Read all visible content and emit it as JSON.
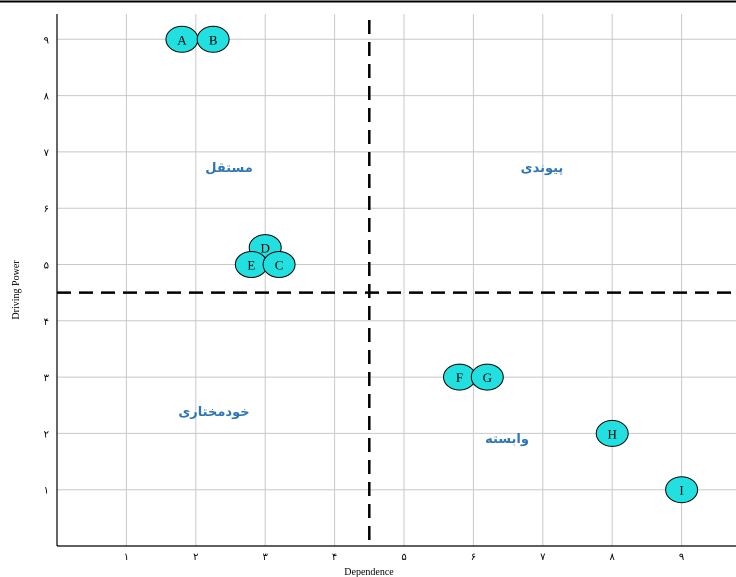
{
  "chart_data": {
    "type": "scatter",
    "xlabel": "Dependence",
    "ylabel": "Driving Power",
    "xlim": [
      0,
      9.6
    ],
    "ylim": [
      0,
      9.5
    ],
    "x_ticks": [
      1,
      2,
      3,
      4,
      5,
      6,
      7,
      8,
      9
    ],
    "y_ticks": [
      1,
      2,
      3,
      4,
      5,
      6,
      7,
      8,
      9
    ],
    "tick_labels": [
      "١",
      "٢",
      "٣",
      "۴",
      "۵",
      "۶",
      "٧",
      "٨",
      "٩"
    ],
    "grid": true,
    "threshold_x": 4.5,
    "threshold_y": 4.5,
    "point_color": "#22e0e0",
    "quadrant_color": "#2e75b6",
    "quadrants": {
      "top_left": "مستقل",
      "top_right": "پیوندی",
      "bottom_left": "خودمختاری",
      "bottom_right": "وابسته"
    },
    "points": [
      {
        "label": "A",
        "x": 1.8,
        "y": 9
      },
      {
        "label": "B",
        "x": 2.25,
        "y": 9
      },
      {
        "label": "D",
        "x": 3,
        "y": 5.3
      },
      {
        "label": "E",
        "x": 2.8,
        "y": 5
      },
      {
        "label": "C",
        "x": 3.2,
        "y": 5
      },
      {
        "label": "F",
        "x": 5.8,
        "y": 3
      },
      {
        "label": "G",
        "x": 6.2,
        "y": 3
      },
      {
        "label": "H",
        "x": 8,
        "y": 2
      },
      {
        "label": "I",
        "x": 9,
        "y": 1
      }
    ]
  }
}
